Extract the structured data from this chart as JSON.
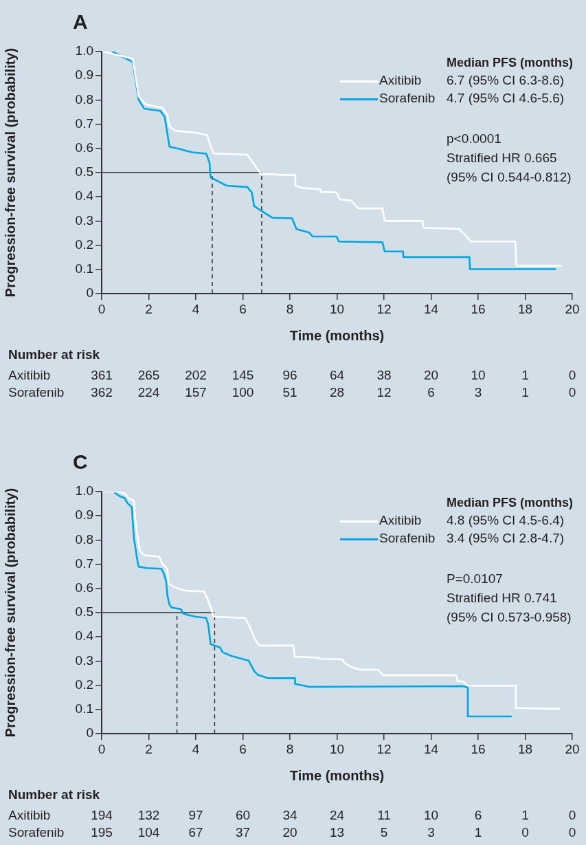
{
  "chart_data": [
    {
      "type": "line",
      "title": "A",
      "xlabel": "Time (months)",
      "ylabel": "Progression-free survival (probability)",
      "legend_title": "Median PFS (months)",
      "legend": "top right",
      "grid": false,
      "marker": "none",
      "line_style": "solid",
      "xlim": [
        0,
        20
      ],
      "xticks": [
        0,
        2,
        4,
        6,
        8,
        10,
        12,
        14,
        16,
        18,
        20
      ],
      "ylim": [
        0,
        1
      ],
      "yticks": [
        0,
        0.1,
        0.2,
        0.3,
        0.4,
        0.5,
        0.6,
        0.7,
        0.8,
        0.9,
        {
          "value": 1,
          "label": "1.0"
        }
      ],
      "series": [
        {
          "name": "Axitibib",
          "color": "#ffffff",
          "x": [
            0.06,
            1.32,
            1.57,
            1.86,
            2.59,
            2.78,
            2.88,
            3.12,
            4.05,
            4.48,
            4.63,
            4.77,
            6.19,
            6.77,
            8.23,
            8.23,
            8.53,
            9.3,
            9.3,
            9.98,
            10.13,
            10.62,
            10.9,
            11.93,
            12.03,
            13.64,
            13.68,
            15.19,
            15.53,
            15.68,
            17.58,
            17.62,
            19.52
          ],
          "values": [
            1,
            0.97,
            0.815,
            0.782,
            0.768,
            0.74,
            0.692,
            0.673,
            0.664,
            0.655,
            0.607,
            0.579,
            0.574,
            0.494,
            0.489,
            0.446,
            0.436,
            0.432,
            0.42,
            0.418,
            0.389,
            0.384,
            0.352,
            0.352,
            0.3,
            0.3,
            0.272,
            0.267,
            0.234,
            0.215,
            0.215,
            0.115,
            0.115
          ]
        },
        {
          "name": "Sorafenib",
          "color": "#00a6e2",
          "x": [
            0.45,
            1.32,
            1.57,
            1.81,
            2.49,
            2.68,
            2.88,
            3.37,
            3.85,
            4.44,
            4.58,
            4.63,
            5.31,
            6.19,
            6.38,
            6.48,
            7.26,
            8.09,
            8.28,
            8.82,
            8.96,
            9.98,
            10.08,
            11.93,
            12.03,
            12.81,
            12.82,
            15.63,
            15.65,
            19.28
          ],
          "values": [
            1,
            0.957,
            0.801,
            0.764,
            0.755,
            0.73,
            0.607,
            0.596,
            0.584,
            0.578,
            0.542,
            0.48,
            0.446,
            0.44,
            0.418,
            0.361,
            0.313,
            0.311,
            0.266,
            0.252,
            0.236,
            0.236,
            0.215,
            0.212,
            0.174,
            0.174,
            0.151,
            0.151,
            0.101,
            0.101
          ]
        }
      ],
      "ref_lines": [
        {
          "axis": "y",
          "value": 0.5,
          "color": "#333333",
          "line_style": "solid"
        },
        {
          "axis": "x",
          "value": 4.7,
          "color": "#333333",
          "line_style": "dashed"
        },
        {
          "axis": "x",
          "value": 6.8,
          "color": "#333333",
          "line_style": "dashed"
        }
      ],
      "annotations": [
        "6.7 (95% CI 6.3-8.6)",
        "4.7 (95% CI 4.6-5.6)",
        "p<0.0001",
        "Stratified HR 0.665",
        "(95% CI 0.544-0.812)",
        "Number at risk",
        "Axitibib 361 265 202 145 96 64 38 20 10 1 0",
        "Sorafenib 362 224 157 100 51 28 12 6 3 1 0"
      ]
    },
    {
      "type": "line",
      "title": "C",
      "xlabel": "Time (months)",
      "ylabel": "Progression-free survival (probability)",
      "legend_title": "Median PFS (months)",
      "legend": "top right",
      "grid": false,
      "marker": "none",
      "line_style": "solid",
      "xlim": [
        0,
        20
      ],
      "xticks": [
        0,
        2,
        4,
        6,
        8,
        10,
        12,
        14,
        16,
        18,
        20
      ],
      "ylim": [
        0,
        1
      ],
      "yticks": [
        0,
        0.1,
        0.2,
        0.3,
        0.4,
        0.5,
        0.6,
        0.7,
        0.8,
        0.9,
        {
          "value": 1,
          "label": "1.0"
        }
      ],
      "series": [
        {
          "name": "Axitibib",
          "color": "#ffffff",
          "x": [
            0.06,
            0.74,
            0.98,
            1.13,
            1.37,
            1.42,
            1.52,
            1.62,
            1.81,
            2.45,
            2.59,
            2.79,
            2.84,
            3.13,
            3.57,
            4.35,
            4.49,
            4.69,
            4.74,
            6.1,
            6.29,
            6.49,
            6.69,
            8.15,
            8.2,
            9.22,
            9.27,
            10.24,
            10.29,
            10.58,
            10.97,
            11.75,
            11.95,
            15.07,
            15.12,
            15.36,
            15.56,
            17.6,
            17.6,
            19.45
          ],
          "values": [
            1,
            1,
            0.992,
            0.973,
            0.963,
            0.897,
            0.817,
            0.756,
            0.737,
            0.731,
            0.7,
            0.681,
            0.62,
            0.603,
            0.591,
            0.587,
            0.558,
            0.507,
            0.483,
            0.478,
            0.441,
            0.394,
            0.364,
            0.364,
            0.318,
            0.314,
            0.309,
            0.307,
            0.295,
            0.276,
            0.264,
            0.264,
            0.241,
            0.241,
            0.217,
            0.215,
            0.198,
            0.198,
            0.106,
            0.102
          ]
        },
        {
          "name": "Sorafenib",
          "color": "#00a6e2",
          "x": [
            0.55,
            0.74,
            0.98,
            1.08,
            1.28,
            1.37,
            1.52,
            1.57,
            1.91,
            2.54,
            2.64,
            2.74,
            2.79,
            2.87,
            2.98,
            3.37,
            3.45,
            3.66,
            4.01,
            4.44,
            4.53,
            4.63,
            5.03,
            5.13,
            5.51,
            6.25,
            6.49,
            6.64,
            7.08,
            8.22,
            8.22,
            8.83,
            15.36,
            15.56,
            15.56,
            17.4
          ],
          "values": [
            0.996,
            0.982,
            0.973,
            0.954,
            0.935,
            0.808,
            0.714,
            0.69,
            0.684,
            0.681,
            0.662,
            0.629,
            0.573,
            0.535,
            0.521,
            0.514,
            0.497,
            0.49,
            0.483,
            0.478,
            0.45,
            0.37,
            0.356,
            0.337,
            0.321,
            0.301,
            0.257,
            0.243,
            0.229,
            0.229,
            0.205,
            0.193,
            0.196,
            0.191,
            0.071,
            0.071
          ]
        }
      ],
      "ref_lines": [
        {
          "axis": "y",
          "value": 0.5,
          "color": "#333333",
          "line_style": "solid"
        },
        {
          "axis": "x",
          "value": 3.2,
          "color": "#333333",
          "line_style": "dashed"
        },
        {
          "axis": "x",
          "value": 4.8,
          "color": "#333333",
          "line_style": "dashed"
        }
      ],
      "annotations": [
        "4.8 (95% CI 4.5-6.4)",
        "3.4 (95% CI 2.8-4.7)",
        "P=0.0107",
        "Stratified HR 0.741",
        "(95% CI 0.573-0.958)",
        "Number at risk",
        "Axitibib 194 132 97 60 34 24 11 10 6 1 0",
        "Sorafenib 195 104 67 37 20 13 5 3 1 0 0"
      ]
    }
  ]
}
